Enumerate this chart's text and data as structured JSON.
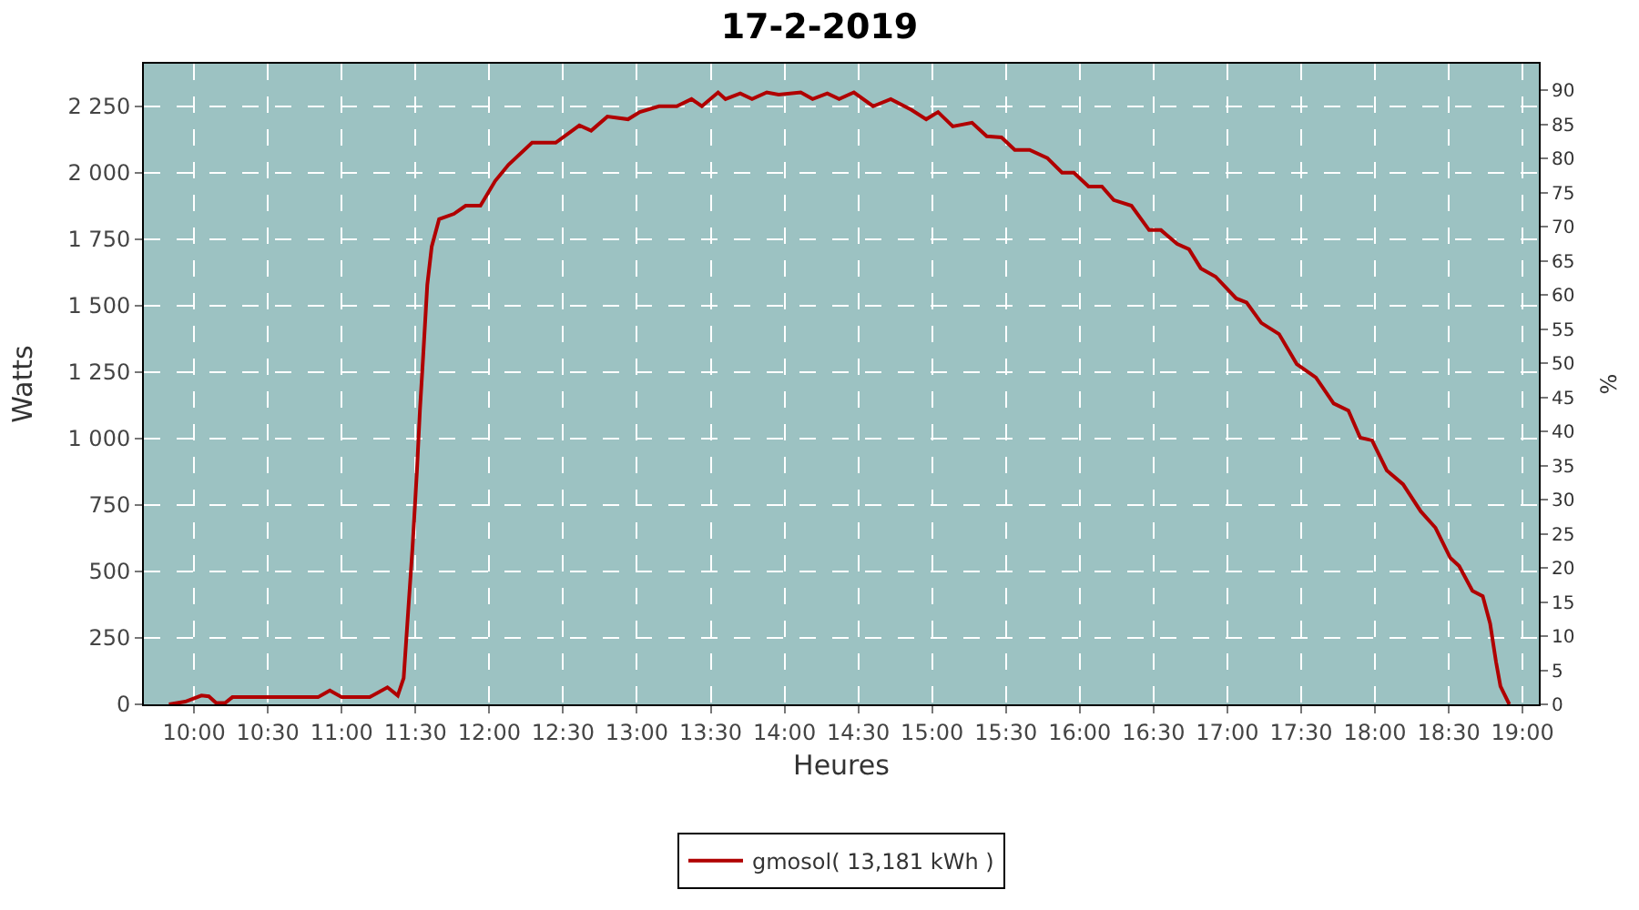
{
  "chart_data": {
    "type": "line",
    "title": "17-2-2019",
    "xlabel": "Heures",
    "ylabel": "Watts",
    "y2label": "%",
    "x": [
      9.83,
      9.94,
      10.05,
      10.1,
      10.15,
      10.21,
      10.26,
      10.84,
      10.92,
      11.0,
      11.19,
      11.31,
      11.38,
      11.42,
      11.45,
      11.48,
      11.51,
      11.53,
      11.55,
      11.58,
      11.61,
      11.66,
      11.76,
      11.84,
      11.94,
      12.04,
      12.13,
      12.29,
      12.45,
      12.61,
      12.69,
      12.8,
      12.94,
      13.02,
      13.15,
      13.27,
      13.37,
      13.44,
      13.55,
      13.6,
      13.7,
      13.78,
      13.88,
      13.96,
      14.11,
      14.19,
      14.29,
      14.37,
      14.47,
      14.6,
      14.72,
      14.86,
      14.96,
      15.04,
      15.14,
      15.27,
      15.37,
      15.47,
      15.56,
      15.66,
      15.78,
      15.88,
      15.96,
      16.06,
      16.15,
      16.23,
      16.35,
      16.47,
      16.55,
      16.66,
      16.74,
      16.82,
      16.92,
      17.06,
      17.13,
      17.23,
      17.35,
      17.47,
      17.6,
      17.72,
      17.82,
      17.9,
      17.98,
      18.08,
      18.19,
      18.31,
      18.41,
      18.51,
      18.57,
      18.66,
      18.73,
      18.78,
      18.82,
      18.85,
      18.91
    ],
    "series": [
      {
        "name": "gmosol( 13,181 kWh )",
        "color": "#b00000",
        "values": [
          0,
          10,
          33,
          30,
          5,
          5,
          27,
          27,
          52,
          27,
          27,
          64,
          33,
          99,
          345,
          592,
          880,
          1105,
          1290,
          1578,
          1722,
          1825,
          1845,
          1876,
          1876,
          1969,
          2030,
          2113,
          2113,
          2178,
          2158,
          2211,
          2201,
          2228,
          2250,
          2250,
          2277,
          2250,
          2302,
          2277,
          2298,
          2277,
          2302,
          2294,
          2302,
          2277,
          2298,
          2277,
          2302,
          2250,
          2277,
          2236,
          2201,
          2228,
          2174,
          2188,
          2137,
          2133,
          2086,
          2086,
          2055,
          2000,
          2000,
          1948,
          1948,
          1897,
          1876,
          1784,
          1784,
          1732,
          1712,
          1640,
          1609,
          1527,
          1512,
          1435,
          1393,
          1280,
          1229,
          1132,
          1105,
          1003,
          993,
          880,
          828,
          726,
          664,
          551,
          520,
          427,
          407,
          304,
          160,
          68,
          0
        ]
      }
    ],
    "xlim": [
      9.66,
      19.11
    ],
    "xticks": [
      {
        "value": 10,
        "label": "10:00"
      },
      {
        "value": 10.5,
        "label": "10:30"
      },
      {
        "value": 11,
        "label": "11:00"
      },
      {
        "value": 11.5,
        "label": "11:30"
      },
      {
        "value": 12,
        "label": "12:00"
      },
      {
        "value": 12.5,
        "label": "12:30"
      },
      {
        "value": 13,
        "label": "13:00"
      },
      {
        "value": 13.5,
        "label": "13:30"
      },
      {
        "value": 14,
        "label": "14:00"
      },
      {
        "value": 14.5,
        "label": "14:30"
      },
      {
        "value": 15,
        "label": "15:00"
      },
      {
        "value": 15.5,
        "label": "15:30"
      },
      {
        "value": 16,
        "label": "16:00"
      },
      {
        "value": 16.5,
        "label": "16:30"
      },
      {
        "value": 17,
        "label": "17:00"
      },
      {
        "value": 17.5,
        "label": "17:30"
      },
      {
        "value": 18,
        "label": "18:00"
      },
      {
        "value": 18.5,
        "label": "18:30"
      },
      {
        "value": 19,
        "label": "19:00"
      }
    ],
    "ylim": [
      0,
      2410
    ],
    "yticks": [
      0,
      250,
      500,
      750,
      {
        "value": 1000,
        "label": "1 000"
      },
      {
        "value": 1250,
        "label": "1 250"
      },
      {
        "value": 1500,
        "label": "1 500"
      },
      {
        "value": 1750,
        "label": "1 750"
      },
      {
        "value": 2000,
        "label": "2 000"
      },
      {
        "value": 2250,
        "label": "2 250"
      }
    ],
    "y2lim": [
      0,
      93.9
    ],
    "y2ticks": [
      0,
      5,
      10,
      15,
      20,
      25,
      30,
      35,
      40,
      45,
      50,
      55,
      60,
      65,
      70,
      75,
      80,
      85,
      90
    ],
    "grid": true,
    "legend": "bottom",
    "marker": "none",
    "line_style": "solid"
  }
}
